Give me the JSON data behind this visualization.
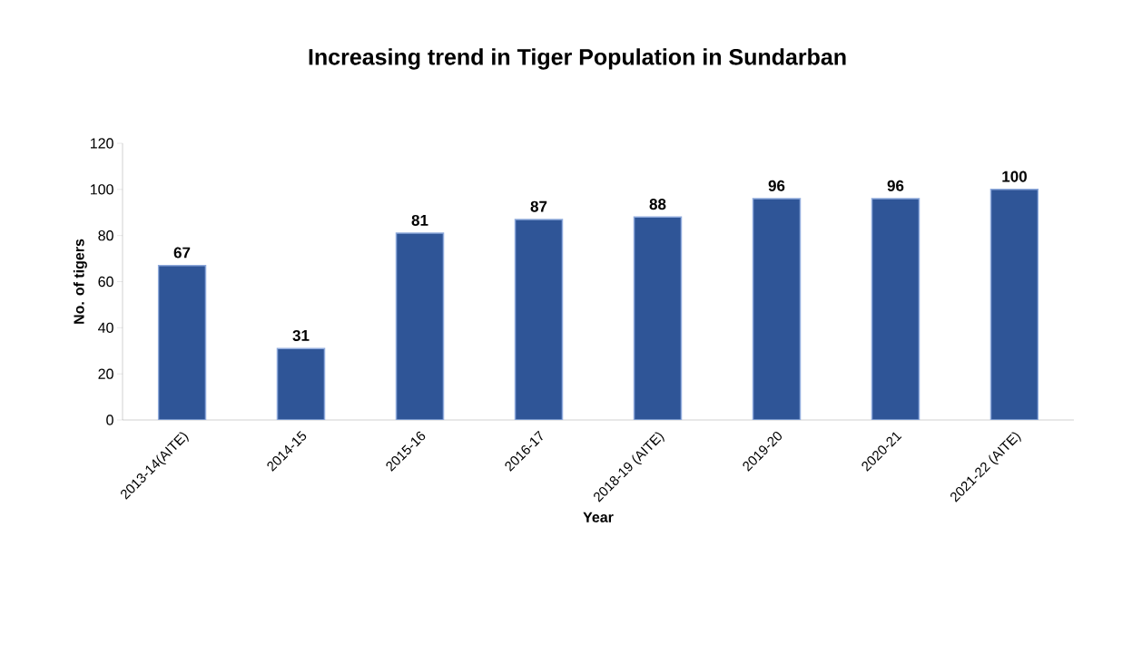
{
  "chart_data": {
    "type": "bar",
    "title": "Increasing trend in Tiger Population in Sundarban",
    "xlabel": "Year",
    "ylabel": "No. of tigers",
    "categories": [
      "2013-14(AITE)",
      "2014-15",
      "2015-16",
      "2016-17",
      "2018-19 (AITE)",
      "2019-20",
      "2020-21",
      "2021-22 (AITE)"
    ],
    "values": [
      67,
      31,
      81,
      87,
      88,
      96,
      96,
      100
    ],
    "color": "#2f5597",
    "ylim": [
      0,
      120
    ],
    "yticks": [
      0,
      20,
      40,
      60,
      80,
      100,
      120
    ],
    "data_labels": true,
    "grid": false
  }
}
